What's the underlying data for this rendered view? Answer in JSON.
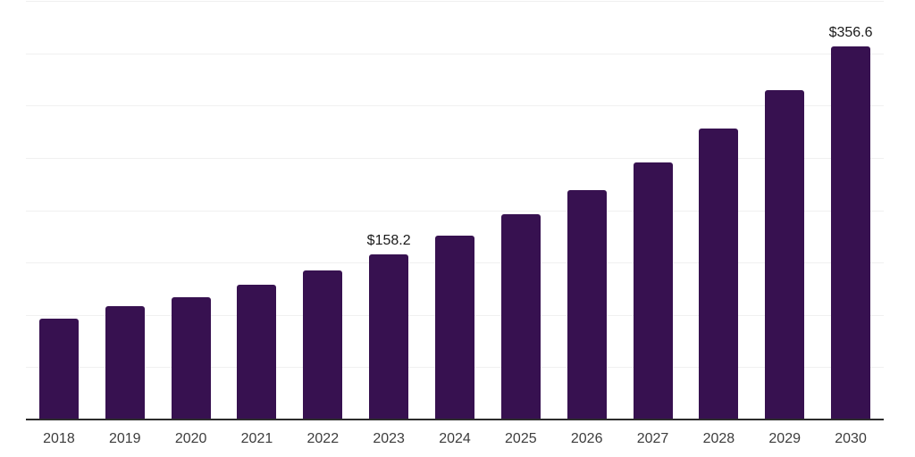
{
  "chart_data": {
    "type": "bar",
    "title": "",
    "xlabel": "",
    "ylabel": "",
    "categories": [
      "2018",
      "2019",
      "2020",
      "2021",
      "2022",
      "2023",
      "2024",
      "2025",
      "2026",
      "2027",
      "2028",
      "2029",
      "2030"
    ],
    "values": [
      96.4,
      108.3,
      116.8,
      128.8,
      142.4,
      158.2,
      175.7,
      196.2,
      219.2,
      245.6,
      278.0,
      314.7,
      356.6
    ],
    "value_labels": {
      "2023": "$158.2",
      "2030": "$356.6"
    },
    "ylim": [
      0,
      400
    ],
    "gridline_step": 50,
    "grid": "horizontal",
    "legend": "none"
  },
  "colors": {
    "background": "#ffffff",
    "bar": "#371150",
    "axis_line": "#2d2d2d",
    "gridline": "#f0f0f0",
    "tick_label": "#3d3d3d",
    "value_label": "#1a1a1a"
  }
}
